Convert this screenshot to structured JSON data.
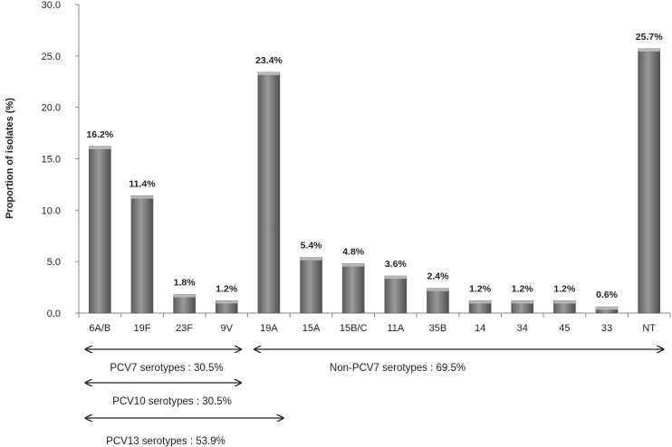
{
  "chart_data": {
    "type": "bar",
    "categories": [
      "6A/B",
      "19F",
      "23F",
      "9V",
      "19A",
      "15A",
      "15B/C",
      "11A",
      "35B",
      "14",
      "34",
      "45",
      "33",
      "NT"
    ],
    "values": [
      16.2,
      11.4,
      1.8,
      1.2,
      23.4,
      5.4,
      4.8,
      3.6,
      2.4,
      1.2,
      1.2,
      1.2,
      0.6,
      25.7
    ],
    "data_labels": [
      "16.2%",
      "11.4%",
      "1.8%",
      "1.2%",
      "23.4%",
      "5.4%",
      "4.8%",
      "3.6%",
      "2.4%",
      "1.2%",
      "1.2%",
      "1.2%",
      "0.6%",
      "25.7%"
    ],
    "ylabel": "Proportion of isolates (%)",
    "xlabel": "",
    "ylim": [
      0,
      30
    ],
    "yticks": [
      "0.0",
      "5.0",
      "10.0",
      "15.0",
      "20.0",
      "25.0",
      "30.0"
    ],
    "grid": false,
    "bar_color": "#7a7a7a",
    "annotations": [
      {
        "text": "PCV7 serotypes : 30.5%",
        "from_category": "6A/B",
        "to_category": "9V"
      },
      {
        "text": "Non-PCV7 serotypes : 69.5%",
        "from_category": "19A",
        "to_category": "NT"
      },
      {
        "text": "PCV10 serotypes : 30.5%",
        "from_category": "6A/B",
        "to_category": "9V"
      },
      {
        "text": "PCV13 serotypes : 53.9%",
        "from_category": "6A/B",
        "to_category": "19A"
      }
    ]
  }
}
